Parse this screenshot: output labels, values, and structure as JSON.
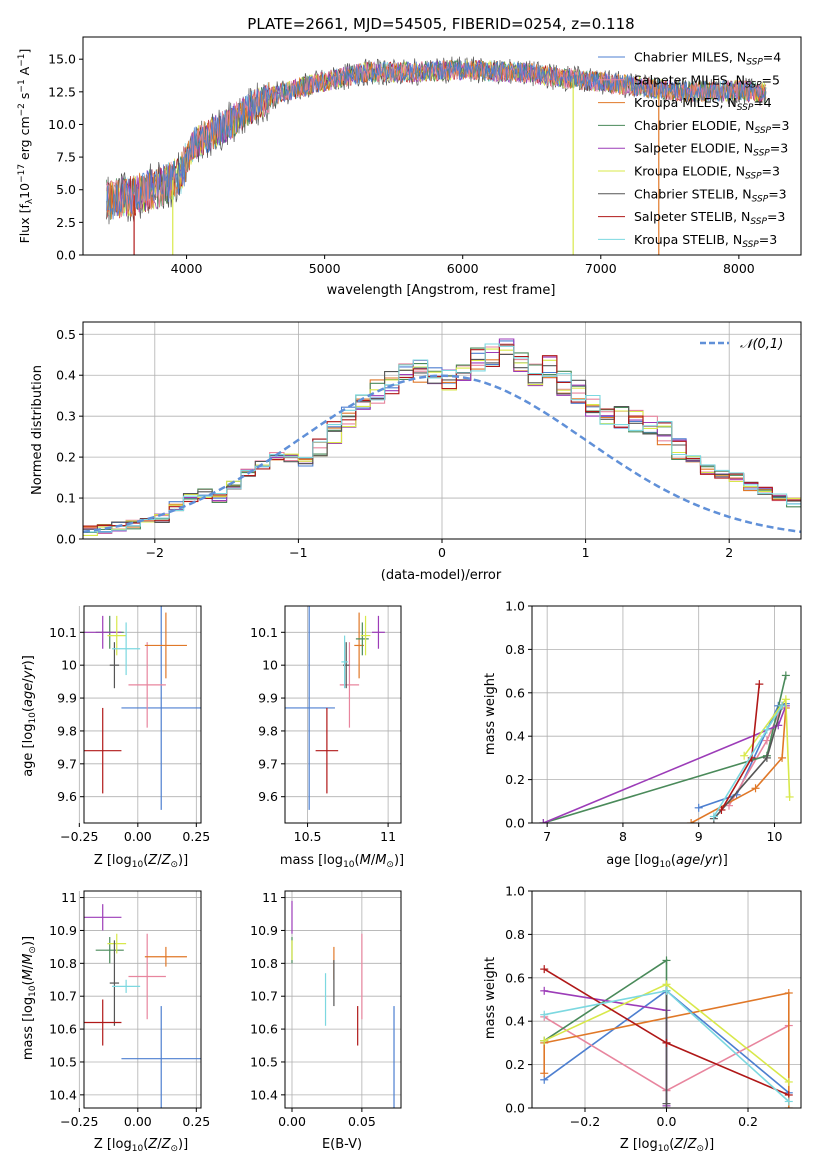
{
  "chart_data": [
    {
      "id": "spectrum",
      "type": "line",
      "title": "PLATE=2661, MJD=54505, FIBERID=0254, z=0.118",
      "xlabel": "wavelength [Angstrom, rest frame]",
      "ylabel": "Flux [f_λ 10^-17 erg cm^-2 s^-1 A^-1]",
      "xlim": [
        3250,
        8450
      ],
      "ylim": [
        0,
        16.7
      ],
      "xticks": [
        4000,
        5000,
        6000,
        7000,
        8000
      ],
      "yticks": [
        0.0,
        2.5,
        5.0,
        7.5,
        10.0,
        12.5,
        15.0
      ],
      "legend_position": "top-right",
      "data_sketch": {
        "x": [
          3420,
          3600,
          3800,
          3950,
          4050,
          4300,
          4500,
          4700,
          5000,
          5300,
          5600,
          6000,
          6400,
          6800,
          7200,
          7600,
          8000,
          8200
        ],
        "y": [
          4.2,
          4.5,
          5.2,
          6.0,
          8.5,
          10.0,
          11.5,
          12.5,
          13.3,
          14.0,
          14.0,
          14.2,
          14.0,
          13.5,
          13.0,
          12.5,
          12.6,
          12.4
        ]
      },
      "series": [
        {
          "name": "Chabrier MILES, N_SSP=4",
          "color": "#4d7fd0"
        },
        {
          "name": "Salpeter MILES, N_SSP=5",
          "color": "#e8859e"
        },
        {
          "name": "Kroupa MILES, N_SSP=4",
          "color": "#e07828"
        },
        {
          "name": "Chabrier ELODIE, N_SSP=3",
          "color": "#4a8a5a"
        },
        {
          "name": "Salpeter ELODIE, N_SSP=3",
          "color": "#9c3cb8"
        },
        {
          "name": "Kroupa ELODIE, N_SSP=3",
          "color": "#d8e84a"
        },
        {
          "name": "Chabrier STELIB, N_SSP=3",
          "color": "#555555"
        },
        {
          "name": "Salpeter STELIB, N_SSP=3",
          "color": "#b01818"
        },
        {
          "name": "Kroupa STELIB, N_SSP=3",
          "color": "#7cd8e0"
        }
      ]
    },
    {
      "id": "residuals",
      "type": "histogram",
      "xlabel": "(data-model)/error",
      "ylabel": "Normed distribution",
      "xlim": [
        -2.5,
        2.5
      ],
      "ylim": [
        0,
        0.53
      ],
      "xticks": [
        -2,
        -1,
        0,
        1,
        2
      ],
      "yticks": [
        0.0,
        0.1,
        0.2,
        0.3,
        0.4,
        0.5
      ],
      "grid": true,
      "legend": "𝒩(0,1)",
      "legend_position": "top-right",
      "reference_curve": {
        "name": "𝒩(0,1)",
        "mean": 0,
        "sigma": 1,
        "color": "#6090d8"
      },
      "bin_width": 0.1,
      "bin_start": -2.5,
      "values": [
        0.02,
        0.025,
        0.03,
        0.035,
        0.04,
        0.05,
        0.08,
        0.1,
        0.11,
        0.1,
        0.13,
        0.16,
        0.18,
        0.2,
        0.2,
        0.19,
        0.22,
        0.26,
        0.3,
        0.34,
        0.36,
        0.38,
        0.4,
        0.41,
        0.4,
        0.39,
        0.4,
        0.44,
        0.45,
        0.47,
        0.43,
        0.4,
        0.42,
        0.38,
        0.36,
        0.33,
        0.31,
        0.3,
        0.29,
        0.28,
        0.26,
        0.22,
        0.2,
        0.17,
        0.16,
        0.15,
        0.13,
        0.12,
        0.1,
        0.09
      ]
    },
    {
      "id": "age-vs-z",
      "type": "scatter",
      "xlabel": "Z [log10(Z/Z⊙)]",
      "ylabel": "age [log10(age/yr)]",
      "xlim": [
        -0.23,
        0.27
      ],
      "ylim": [
        9.52,
        10.18
      ],
      "xticks": [
        "−0.25",
        "0.00",
        "0.25"
      ],
      "xtick_values": [
        -0.25,
        0.0,
        0.25
      ],
      "yticks": [
        9.6,
        9.7,
        9.8,
        9.9,
        10.0,
        10.1
      ],
      "grid": true,
      "points": [
        {
          "x": 0.1,
          "y": 9.87,
          "xerr": 0.17,
          "yerr": 0.31,
          "color": "#4d7fd0"
        },
        {
          "x": 0.04,
          "y": 9.94,
          "xerr": 0.08,
          "yerr": 0.13,
          "color": "#e8859e"
        },
        {
          "x": 0.12,
          "y": 10.06,
          "xerr": 0.09,
          "yerr": 0.1,
          "color": "#e07828"
        },
        {
          "x": -0.12,
          "y": 10.1,
          "xerr": 0.06,
          "yerr": 0.05,
          "color": "#4a8a5a"
        },
        {
          "x": -0.15,
          "y": 10.1,
          "xerr": 0.08,
          "yerr": 0.05,
          "color": "#9c3cb8"
        },
        {
          "x": -0.09,
          "y": 10.09,
          "xerr": 0.04,
          "yerr": 0.06,
          "color": "#d8e84a"
        },
        {
          "x": -0.1,
          "y": 10.0,
          "xerr": 0.02,
          "yerr": 0.07,
          "color": "#555555"
        },
        {
          "x": -0.15,
          "y": 9.74,
          "xerr": 0.08,
          "yerr": 0.13,
          "color": "#b01818"
        },
        {
          "x": -0.05,
          "y": 10.05,
          "xerr": 0.06,
          "yerr": 0.08,
          "color": "#7cd8e0"
        }
      ]
    },
    {
      "id": "age-vs-mass",
      "type": "scatter",
      "xlabel": "mass [log10(M/M⊙)]",
      "ylabel": "",
      "xlim": [
        10.36,
        11.08
      ],
      "ylim": [
        9.52,
        10.18
      ],
      "xticks": [
        10.5,
        11.0
      ],
      "yticks": [
        9.6,
        9.7,
        9.8,
        9.9,
        10.0,
        10.1
      ],
      "grid": true,
      "points": [
        {
          "x": 10.51,
          "y": 9.87,
          "xerr": 0.16,
          "yerr": 0.31,
          "color": "#4d7fd0"
        },
        {
          "x": 10.76,
          "y": 9.94,
          "xerr": 0.06,
          "yerr": 0.13,
          "color": "#e8859e"
        },
        {
          "x": 10.82,
          "y": 10.06,
          "xerr": 0.03,
          "yerr": 0.1,
          "color": "#e07828"
        },
        {
          "x": 10.84,
          "y": 10.08,
          "xerr": 0.04,
          "yerr": 0.05,
          "color": "#4a8a5a"
        },
        {
          "x": 10.94,
          "y": 10.1,
          "xerr": 0.04,
          "yerr": 0.05,
          "color": "#9c3cb8"
        },
        {
          "x": 10.86,
          "y": 10.09,
          "xerr": 0.03,
          "yerr": 0.06,
          "color": "#d8e84a"
        },
        {
          "x": 10.74,
          "y": 10.0,
          "xerr": 0.02,
          "yerr": 0.07,
          "color": "#555555"
        },
        {
          "x": 10.62,
          "y": 9.74,
          "xerr": 0.07,
          "yerr": 0.13,
          "color": "#b01818"
        },
        {
          "x": 10.73,
          "y": 10.01,
          "xerr": 0.02,
          "yerr": 0.08,
          "color": "#7cd8e0"
        }
      ]
    },
    {
      "id": "weight-vs-age",
      "type": "line",
      "xlabel": "age [log10(age/yr)]",
      "ylabel": "mass weight",
      "xlim": [
        6.8,
        10.35
      ],
      "ylim": [
        0,
        1.0
      ],
      "xticks": [
        7,
        8,
        9,
        10
      ],
      "yticks": [
        0.0,
        0.2,
        0.4,
        0.6,
        0.8,
        1.0
      ],
      "grid": true,
      "series": [
        {
          "color": "#4d7fd0",
          "x": [
            9.0,
            9.5,
            10.05,
            10.15
          ],
          "y": [
            0.07,
            0.13,
            0.54,
            0.55
          ]
        },
        {
          "color": "#e8859e",
          "x": [
            9.4,
            9.9,
            10.1
          ],
          "y": [
            0.08,
            0.38,
            0.54
          ]
        },
        {
          "color": "#e07828",
          "x": [
            8.9,
            9.75,
            10.1,
            10.15
          ],
          "y": [
            0.0,
            0.16,
            0.3,
            0.53
          ]
        },
        {
          "color": "#4a8a5a",
          "x": [
            6.95,
            9.9,
            10.15
          ],
          "y": [
            0.0,
            0.31,
            0.68
          ]
        },
        {
          "color": "#9c3cb8",
          "x": [
            6.95,
            10.05,
            10.15
          ],
          "y": [
            0.0,
            0.45,
            0.54
          ]
        },
        {
          "color": "#d8e84a",
          "x": [
            9.6,
            10.15,
            10.2
          ],
          "y": [
            0.31,
            0.57,
            0.12
          ]
        },
        {
          "color": "#555555",
          "x": [
            9.2,
            9.9,
            10.1
          ],
          "y": [
            0.02,
            0.3,
            0.54
          ]
        },
        {
          "color": "#b01818",
          "x": [
            9.3,
            9.7,
            9.8
          ],
          "y": [
            0.06,
            0.3,
            0.64
          ]
        },
        {
          "color": "#7cd8e0",
          "x": [
            9.2,
            9.9,
            10.1
          ],
          "y": [
            0.03,
            0.43,
            0.54
          ]
        }
      ]
    },
    {
      "id": "mass-vs-z",
      "type": "scatter",
      "xlabel": "Z [log10(Z/Z⊙)]",
      "ylabel": "mass [log10(M/M⊙)]",
      "xlim": [
        -0.23,
        0.27
      ],
      "ylim": [
        10.36,
        11.02
      ],
      "xticks": [
        "−0.25",
        "0.00",
        "0.25"
      ],
      "xtick_values": [
        -0.25,
        0.0,
        0.25
      ],
      "yticks": [
        10.4,
        10.5,
        10.6,
        10.7,
        10.8,
        10.9,
        11.0
      ],
      "grid": true,
      "points": [
        {
          "x": 0.1,
          "y": 10.51,
          "xerr": 0.17,
          "yerr": 0.16,
          "color": "#4d7fd0"
        },
        {
          "x": 0.04,
          "y": 10.76,
          "xerr": 0.08,
          "yerr": 0.13,
          "color": "#e8859e"
        },
        {
          "x": 0.12,
          "y": 10.82,
          "xerr": 0.09,
          "yerr": 0.03,
          "color": "#e07828"
        },
        {
          "x": -0.12,
          "y": 10.84,
          "xerr": 0.06,
          "yerr": 0.04,
          "color": "#4a8a5a"
        },
        {
          "x": -0.15,
          "y": 10.94,
          "xerr": 0.08,
          "yerr": 0.04,
          "color": "#9c3cb8"
        },
        {
          "x": -0.09,
          "y": 10.86,
          "xerr": 0.04,
          "yerr": 0.03,
          "color": "#d8e84a"
        },
        {
          "x": -0.1,
          "y": 10.74,
          "xerr": 0.02,
          "yerr": 0.13,
          "color": "#555555"
        },
        {
          "x": -0.15,
          "y": 10.62,
          "xerr": 0.08,
          "yerr": 0.07,
          "color": "#b01818"
        },
        {
          "x": -0.05,
          "y": 10.73,
          "xerr": 0.06,
          "yerr": 0.02,
          "color": "#7cd8e0"
        }
      ]
    },
    {
      "id": "mass-vs-ebv",
      "type": "scatter",
      "xlabel": "E(B-V)",
      "ylabel": "",
      "xlim": [
        -0.005,
        0.078
      ],
      "ylim": [
        10.36,
        11.02
      ],
      "xticks": [
        "0.00",
        "0.05"
      ],
      "xtick_values": [
        0.0,
        0.05
      ],
      "yticks": [
        10.4,
        10.5,
        10.6,
        10.7,
        10.8,
        10.9,
        11.0
      ],
      "grid": true,
      "points": [
        {
          "x": 0.073,
          "y": 10.51,
          "xerr": 0,
          "yerr": 0.16,
          "color": "#4d7fd0"
        },
        {
          "x": 0.05,
          "y": 10.76,
          "xerr": 0,
          "yerr": 0.13,
          "color": "#e8859e"
        },
        {
          "x": 0.03,
          "y": 10.8,
          "xerr": 0,
          "yerr": 0.05,
          "color": "#e07828"
        },
        {
          "x": 0.0,
          "y": 10.84,
          "xerr": 0,
          "yerr": 0.04,
          "color": "#4a8a5a"
        },
        {
          "x": 0.0,
          "y": 10.94,
          "xerr": 0,
          "yerr": 0.05,
          "color": "#9c3cb8"
        },
        {
          "x": 0.0,
          "y": 10.84,
          "xerr": 0,
          "yerr": 0.03,
          "color": "#d8e84a"
        },
        {
          "x": 0.03,
          "y": 10.74,
          "xerr": 0,
          "yerr": 0.07,
          "color": "#555555"
        },
        {
          "x": 0.047,
          "y": 10.61,
          "xerr": 0,
          "yerr": 0.06,
          "color": "#b01818"
        },
        {
          "x": 0.024,
          "y": 10.69,
          "xerr": 0,
          "yerr": 0.08,
          "color": "#7cd8e0"
        }
      ]
    },
    {
      "id": "weight-vs-z",
      "type": "line",
      "xlabel": "Z [log10(Z/Z⊙)]",
      "ylabel": "mass weight",
      "xlim": [
        -0.33,
        0.33
      ],
      "ylim": [
        0,
        1.0
      ],
      "xticks": [
        "−0.2",
        "0.0",
        "0.2"
      ],
      "xtick_values": [
        -0.2,
        0.0,
        0.2
      ],
      "yticks": [
        0.0,
        0.2,
        0.4,
        0.6,
        0.8,
        1.0
      ],
      "grid": true,
      "series": [
        {
          "color": "#4d7fd0",
          "x": [
            -0.3,
            0.0,
            0.3
          ],
          "y": [
            0.13,
            0.54,
            0.07
          ]
        },
        {
          "color": "#e8859e",
          "x": [
            -0.3,
            0.0,
            0.3
          ],
          "y": [
            0.42,
            0.08,
            0.38
          ]
        },
        {
          "color": "#e07828",
          "x": [
            -0.3,
            -0.3,
            0.3,
            0.3
          ],
          "y": [
            0.16,
            0.3,
            0.53,
            0.0
          ]
        },
        {
          "color": "#4a8a5a",
          "x": [
            -0.3,
            0.0,
            0.0
          ],
          "y": [
            0.31,
            0.68,
            0.0
          ]
        },
        {
          "color": "#9c3cb8",
          "x": [
            -0.3,
            0.0,
            0.0
          ],
          "y": [
            0.54,
            0.45,
            0.01
          ]
        },
        {
          "color": "#d8e84a",
          "x": [
            -0.3,
            0.0,
            0.3
          ],
          "y": [
            0.31,
            0.57,
            0.12
          ]
        },
        {
          "color": "#555555",
          "x": [
            0.0,
            0.0,
            0.0
          ],
          "y": [
            0.54,
            0.3,
            0.02
          ]
        },
        {
          "color": "#b01818",
          "x": [
            -0.3,
            0.0,
            0.3
          ],
          "y": [
            0.64,
            0.3,
            0.06
          ]
        },
        {
          "color": "#7cd8e0",
          "x": [
            -0.3,
            0.0,
            0.3
          ],
          "y": [
            0.43,
            0.54,
            0.03
          ]
        }
      ]
    }
  ]
}
